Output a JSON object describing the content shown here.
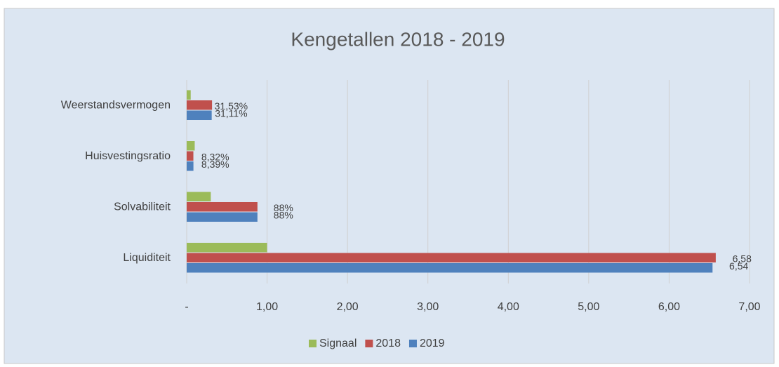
{
  "chart_data": {
    "type": "hbar",
    "title": "Kengetallen 2018 - 2019",
    "categories": [
      "Weerstandsvermogen",
      "Huisvestingsratio",
      "Solvabiliteit",
      "Liquiditeit"
    ],
    "series": [
      {
        "name": "Signaal",
        "color": "#9bbb59",
        "values": [
          0.05,
          0.1,
          0.3,
          1.0
        ]
      },
      {
        "name": "2018",
        "color": "#c0504d",
        "values": [
          0.3153,
          0.0832,
          0.88,
          6.58
        ],
        "value_labels": [
          "31,53%",
          "8,32%",
          "88%",
          "6,58"
        ]
      },
      {
        "name": "2019",
        "color": "#4f81bd",
        "values": [
          0.3111,
          0.0839,
          0.88,
          6.54
        ],
        "value_labels": [
          "31,11%",
          "8,39%",
          "88%",
          "6,54"
        ]
      }
    ],
    "xlim": [
      0,
      7
    ],
    "xticks": [
      {
        "value": 0,
        "label": "-"
      },
      {
        "value": 1,
        "label": "1,00"
      },
      {
        "value": 2,
        "label": "2,00"
      },
      {
        "value": 3,
        "label": "3,00"
      },
      {
        "value": 4,
        "label": "4,00"
      },
      {
        "value": 5,
        "label": "5,00"
      },
      {
        "value": 6,
        "label": "6,00"
      },
      {
        "value": 7,
        "label": "7,00"
      }
    ],
    "grid": true,
    "legend": "bottom"
  }
}
